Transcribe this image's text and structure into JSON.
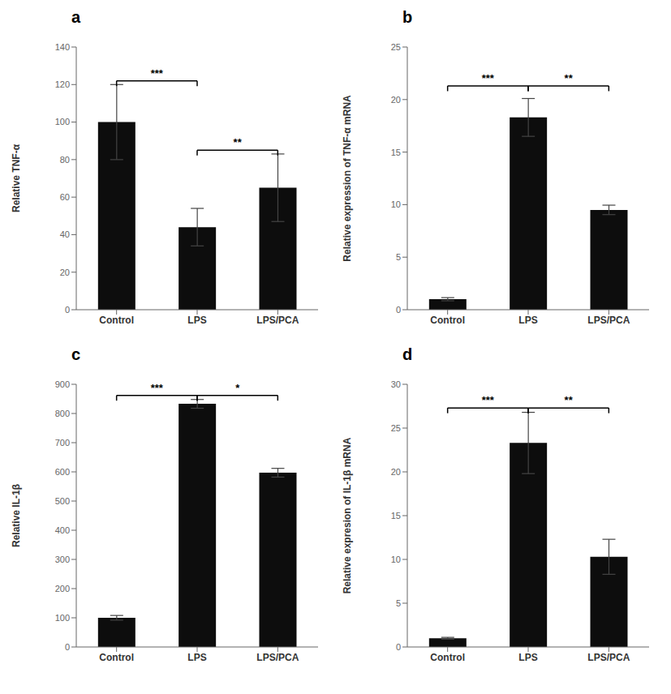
{
  "chart_data": [
    {
      "type": "bar",
      "title": "a",
      "categories": [
        "Control",
        "LPS",
        "LPS/PCA"
      ],
      "values": [
        100,
        44,
        65
      ],
      "errors": [
        20,
        10,
        18
      ],
      "ylabel": "Relative TNF-α",
      "ylim": [
        0,
        140
      ],
      "yticks": [
        0,
        20,
        40,
        60,
        80,
        100,
        120,
        140
      ],
      "color": "#0d0d0d",
      "grid": false,
      "annotations": [
        {
          "x1": "Control",
          "x2": "LPS",
          "y": 122,
          "label": "***"
        },
        {
          "x1": "LPS",
          "x2": "LPS/PCA",
          "y": 85,
          "label": "**"
        }
      ]
    },
    {
      "type": "bar",
      "title": "b",
      "categories": [
        "Control",
        "LPS",
        "LPS/PCA"
      ],
      "values": [
        1.0,
        18.3,
        9.5
      ],
      "errors": [
        0.15,
        1.8,
        0.45
      ],
      "ylabel": "Relative expression of TNF-α  mRNA",
      "ylim": [
        0,
        25
      ],
      "yticks": [
        0,
        5,
        10,
        15,
        20,
        25
      ],
      "color": "#0d0d0d",
      "grid": false,
      "annotations": [
        {
          "x1": "Control",
          "x2": "LPS",
          "y": 21.3,
          "label": "***"
        },
        {
          "x1": "LPS",
          "x2": "LPS/PCA",
          "y": 21.3,
          "label": "**"
        }
      ]
    },
    {
      "type": "bar",
      "title": "c",
      "categories": [
        "Control",
        "LPS",
        "LPS/PCA"
      ],
      "values": [
        100,
        833,
        597
      ],
      "errors": [
        8,
        15,
        15
      ],
      "ylabel": "Relative IL-1β",
      "ylim": [
        0,
        900
      ],
      "yticks": [
        0,
        100,
        200,
        300,
        400,
        500,
        600,
        700,
        800,
        900
      ],
      "color": "#0d0d0d",
      "grid": false,
      "annotations": [
        {
          "x1": "Control",
          "x2": "LPS",
          "y": 862,
          "label": "***"
        },
        {
          "x1": "LPS",
          "x2": "LPS/PCA",
          "y": 862,
          "label": "*"
        }
      ]
    },
    {
      "type": "bar",
      "title": "d",
      "categories": [
        "Control",
        "LPS",
        "LPS/PCA"
      ],
      "values": [
        1.0,
        23.3,
        10.3
      ],
      "errors": [
        0.1,
        3.5,
        2.0
      ],
      "ylabel": "Relative expresion of IL-1β mRNA",
      "ylim": [
        0,
        30
      ],
      "yticks": [
        0,
        5,
        10,
        15,
        20,
        25,
        30
      ],
      "color": "#0d0d0d",
      "grid": false,
      "annotations": [
        {
          "x1": "Control",
          "x2": "LPS",
          "y": 27.3,
          "label": "***"
        },
        {
          "x1": "LPS",
          "x2": "LPS/PCA",
          "y": 27.3,
          "label": "**"
        }
      ]
    }
  ]
}
